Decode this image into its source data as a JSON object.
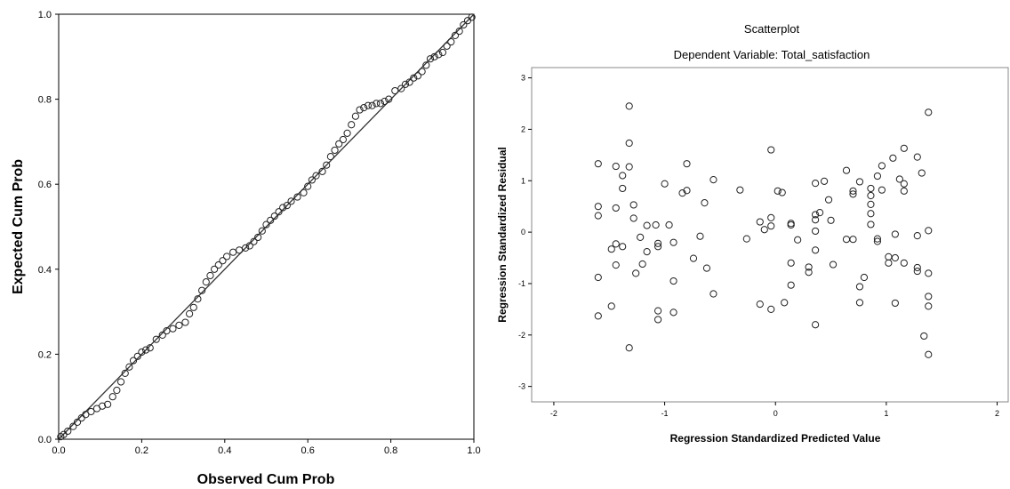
{
  "chart_data": [
    {
      "type": "scatter",
      "xlabel": "Observed Cum Prob",
      "ylabel": "Expected Cum Prob",
      "xlim": [
        0,
        1
      ],
      "ylim": [
        0,
        1
      ],
      "x_ticks": [
        "0.0",
        "0.2",
        "0.4",
        "0.6",
        "0.8",
        "1.0"
      ],
      "y_ticks": [
        "0.0",
        "0.2",
        "0.4",
        "0.6",
        "0.8",
        "1.0"
      ],
      "reference_line": {
        "from": [
          0,
          0
        ],
        "to": [
          1,
          1
        ]
      },
      "grid": false,
      "series": [
        {
          "points": [
            [
              0.005,
              0.006
            ],
            [
              0.012,
              0.011
            ],
            [
              0.022,
              0.019
            ],
            [
              0.035,
              0.03
            ],
            [
              0.045,
              0.04
            ],
            [
              0.055,
              0.05
            ],
            [
              0.065,
              0.058
            ],
            [
              0.078,
              0.065
            ],
            [
              0.092,
              0.072
            ],
            [
              0.105,
              0.078
            ],
            [
              0.118,
              0.082
            ],
            [
              0.13,
              0.1
            ],
            [
              0.14,
              0.115
            ],
            [
              0.15,
              0.135
            ],
            [
              0.16,
              0.155
            ],
            [
              0.17,
              0.17
            ],
            [
              0.18,
              0.185
            ],
            [
              0.19,
              0.195
            ],
            [
              0.2,
              0.205
            ],
            [
              0.21,
              0.21
            ],
            [
              0.22,
              0.215
            ],
            [
              0.235,
              0.235
            ],
            [
              0.25,
              0.245
            ],
            [
              0.26,
              0.255
            ],
            [
              0.275,
              0.26
            ],
            [
              0.29,
              0.268
            ],
            [
              0.305,
              0.275
            ],
            [
              0.315,
              0.295
            ],
            [
              0.325,
              0.31
            ],
            [
              0.335,
              0.33
            ],
            [
              0.345,
              0.35
            ],
            [
              0.355,
              0.37
            ],
            [
              0.365,
              0.385
            ],
            [
              0.375,
              0.4
            ],
            [
              0.385,
              0.41
            ],
            [
              0.395,
              0.42
            ],
            [
              0.405,
              0.43
            ],
            [
              0.42,
              0.44
            ],
            [
              0.435,
              0.445
            ],
            [
              0.45,
              0.45
            ],
            [
              0.46,
              0.455
            ],
            [
              0.47,
              0.465
            ],
            [
              0.48,
              0.475
            ],
            [
              0.49,
              0.49
            ],
            [
              0.5,
              0.505
            ],
            [
              0.51,
              0.515
            ],
            [
              0.52,
              0.525
            ],
            [
              0.53,
              0.535
            ],
            [
              0.54,
              0.545
            ],
            [
              0.55,
              0.55
            ],
            [
              0.56,
              0.56
            ],
            [
              0.575,
              0.57
            ],
            [
              0.59,
              0.58
            ],
            [
              0.6,
              0.595
            ],
            [
              0.61,
              0.61
            ],
            [
              0.62,
              0.62
            ],
            [
              0.635,
              0.63
            ],
            [
              0.645,
              0.645
            ],
            [
              0.655,
              0.665
            ],
            [
              0.665,
              0.68
            ],
            [
              0.675,
              0.695
            ],
            [
              0.685,
              0.705
            ],
            [
              0.695,
              0.72
            ],
            [
              0.705,
              0.74
            ],
            [
              0.715,
              0.76
            ],
            [
              0.725,
              0.775
            ],
            [
              0.735,
              0.78
            ],
            [
              0.745,
              0.785
            ],
            [
              0.755,
              0.785
            ],
            [
              0.765,
              0.79
            ],
            [
              0.775,
              0.79
            ],
            [
              0.785,
              0.795
            ],
            [
              0.795,
              0.8
            ],
            [
              0.81,
              0.82
            ],
            [
              0.825,
              0.825
            ],
            [
              0.835,
              0.835
            ],
            [
              0.845,
              0.84
            ],
            [
              0.855,
              0.85
            ],
            [
              0.865,
              0.855
            ],
            [
              0.875,
              0.865
            ],
            [
              0.885,
              0.88
            ],
            [
              0.895,
              0.895
            ],
            [
              0.905,
              0.9
            ],
            [
              0.915,
              0.905
            ],
            [
              0.925,
              0.91
            ],
            [
              0.935,
              0.925
            ],
            [
              0.945,
              0.935
            ],
            [
              0.955,
              0.95
            ],
            [
              0.965,
              0.96
            ],
            [
              0.975,
              0.975
            ],
            [
              0.985,
              0.985
            ],
            [
              0.995,
              0.993
            ]
          ]
        }
      ]
    },
    {
      "type": "scatter",
      "title": "Scatterplot",
      "subtitle": "Dependent Variable: Total_satisfaction",
      "xlabel": "Regression Standardized Predicted Value",
      "ylabel": "Regression Standardized Residual",
      "xlim": [
        -2.2,
        2.1
      ],
      "ylim": [
        -3.3,
        3.2
      ],
      "x_ticks": [
        "-2",
        "-1",
        "0",
        "1",
        "2"
      ],
      "y_ticks": [
        "3",
        "2",
        "1",
        "0",
        "-1",
        "-2",
        "-3"
      ],
      "grid": false,
      "series": [
        {
          "points": [
            [
              -1.6,
              1.33
            ],
            [
              -1.6,
              0.5
            ],
            [
              -1.6,
              0.32
            ],
            [
              -1.6,
              -0.88
            ],
            [
              -1.6,
              -1.63
            ],
            [
              -1.48,
              -0.33
            ],
            [
              -1.48,
              -1.44
            ],
            [
              -1.44,
              1.28
            ],
            [
              -1.44,
              0.47
            ],
            [
              -1.44,
              -0.23
            ],
            [
              -1.44,
              -0.64
            ],
            [
              -1.38,
              1.1
            ],
            [
              -1.38,
              0.85
            ],
            [
              -1.38,
              -0.28
            ],
            [
              -1.32,
              2.45
            ],
            [
              -1.32,
              1.73
            ],
            [
              -1.32,
              1.27
            ],
            [
              -1.32,
              -2.25
            ],
            [
              -1.28,
              0.53
            ],
            [
              -1.28,
              0.27
            ],
            [
              -1.26,
              -0.8
            ],
            [
              -1.22,
              -0.1
            ],
            [
              -1.2,
              -0.62
            ],
            [
              -1.16,
              0.13
            ],
            [
              -1.16,
              -0.38
            ],
            [
              -1.08,
              0.14
            ],
            [
              -1.06,
              -0.22
            ],
            [
              -1.06,
              -0.28
            ],
            [
              -1.06,
              -1.53
            ],
            [
              -1.06,
              -1.7
            ],
            [
              -1.0,
              0.94
            ],
            [
              -0.96,
              0.14
            ],
            [
              -0.92,
              -0.2
            ],
            [
              -0.92,
              -0.95
            ],
            [
              -0.92,
              -1.56
            ],
            [
              -0.84,
              0.76
            ],
            [
              -0.8,
              1.33
            ],
            [
              -0.8,
              0.81
            ],
            [
              -0.74,
              -0.51
            ],
            [
              -0.68,
              -0.08
            ],
            [
              -0.64,
              0.57
            ],
            [
              -0.62,
              -0.7
            ],
            [
              -0.56,
              1.02
            ],
            [
              -0.56,
              -1.2
            ],
            [
              -0.32,
              0.82
            ],
            [
              -0.26,
              -0.13
            ],
            [
              -0.14,
              0.2
            ],
            [
              -0.14,
              -1.4
            ],
            [
              -0.1,
              0.05
            ],
            [
              -0.04,
              1.6
            ],
            [
              -0.04,
              0.28
            ],
            [
              -0.04,
              0.12
            ],
            [
              -0.04,
              -1.5
            ],
            [
              0.02,
              0.8
            ],
            [
              0.06,
              0.77
            ],
            [
              0.08,
              -1.37
            ],
            [
              0.14,
              0.17
            ],
            [
              0.14,
              0.14
            ],
            [
              0.14,
              -0.6
            ],
            [
              0.14,
              -1.03
            ],
            [
              0.2,
              -0.15
            ],
            [
              0.3,
              -0.68
            ],
            [
              0.3,
              -0.78
            ],
            [
              0.36,
              0.95
            ],
            [
              0.36,
              0.34
            ],
            [
              0.36,
              0.24
            ],
            [
              0.36,
              0.02
            ],
            [
              0.36,
              -0.35
            ],
            [
              0.36,
              -1.8
            ],
            [
              0.4,
              0.38
            ],
            [
              0.44,
              0.99
            ],
            [
              0.48,
              0.63
            ],
            [
              0.5,
              0.23
            ],
            [
              0.52,
              -0.63
            ],
            [
              0.64,
              1.2
            ],
            [
              0.64,
              -0.14
            ],
            [
              0.7,
              0.8
            ],
            [
              0.7,
              0.74
            ],
            [
              0.7,
              -0.14
            ],
            [
              0.76,
              0.98
            ],
            [
              0.76,
              -1.06
            ],
            [
              0.76,
              -1.37
            ],
            [
              0.8,
              -0.88
            ],
            [
              0.86,
              0.85
            ],
            [
              0.86,
              0.71
            ],
            [
              0.86,
              0.54
            ],
            [
              0.86,
              0.36
            ],
            [
              0.86,
              0.15
            ],
            [
              0.92,
              1.09
            ],
            [
              0.92,
              -0.13
            ],
            [
              0.92,
              -0.18
            ],
            [
              0.96,
              1.29
            ],
            [
              0.96,
              0.82
            ],
            [
              1.02,
              -0.48
            ],
            [
              1.02,
              -0.6
            ],
            [
              1.06,
              1.44
            ],
            [
              1.08,
              -0.04
            ],
            [
              1.08,
              -0.5
            ],
            [
              1.08,
              -1.38
            ],
            [
              1.12,
              1.03
            ],
            [
              1.16,
              1.63
            ],
            [
              1.16,
              0.94
            ],
            [
              1.16,
              0.8
            ],
            [
              1.16,
              -0.6
            ],
            [
              1.28,
              1.46
            ],
            [
              1.28,
              -0.07
            ],
            [
              1.28,
              -0.69
            ],
            [
              1.28,
              -0.76
            ],
            [
              1.32,
              1.15
            ],
            [
              1.34,
              -2.02
            ],
            [
              1.38,
              2.33
            ],
            [
              1.38,
              0.03
            ],
            [
              1.38,
              -0.8
            ],
            [
              1.38,
              -1.25
            ],
            [
              1.38,
              -1.44
            ],
            [
              1.38,
              -2.38
            ]
          ]
        }
      ]
    }
  ]
}
